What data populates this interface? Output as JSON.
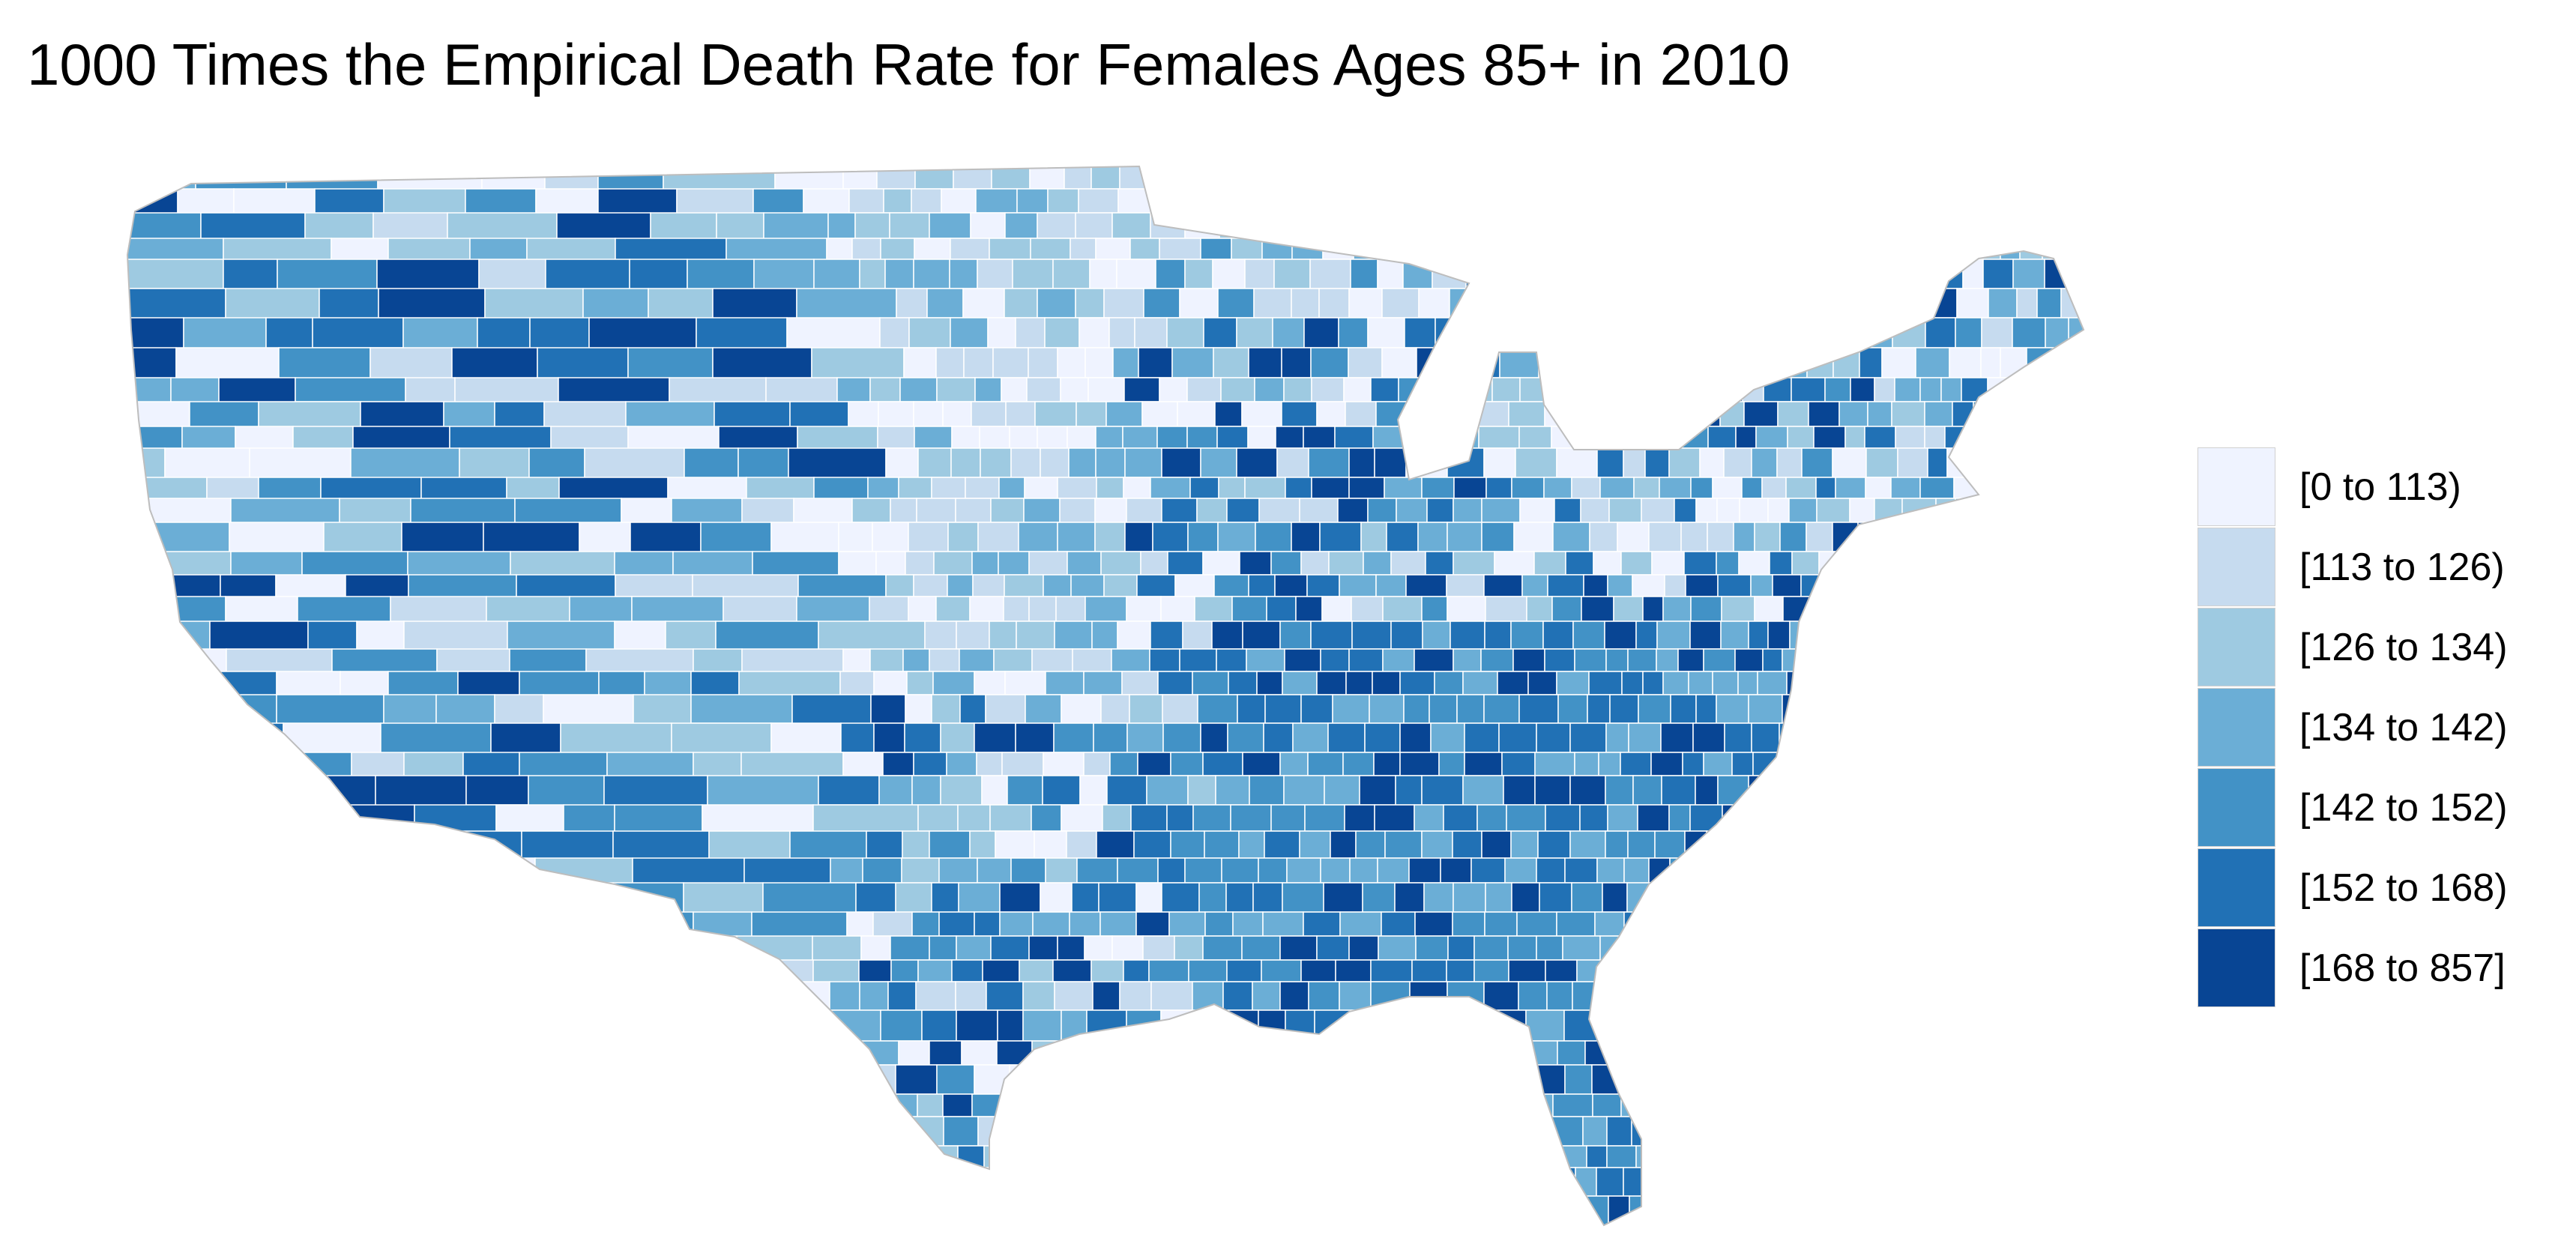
{
  "title": "1000 Times the Empirical Death Rate for Females Ages 85+ in 2010",
  "map": {
    "region": "Contiguous United States (counties)",
    "border_color": "#ffffff"
  },
  "legend": {
    "items": [
      {
        "label": "[0 to 113)",
        "color": "#eff3ff"
      },
      {
        "label": "[113 to 126)",
        "color": "#c6dbef"
      },
      {
        "label": "[126 to 134)",
        "color": "#9ecae1"
      },
      {
        "label": "[134 to 142)",
        "color": "#6baed6"
      },
      {
        "label": "[142 to 152)",
        "color": "#4292c6"
      },
      {
        "label": "[152 to 168)",
        "color": "#2171b5"
      },
      {
        "label": "[168 to 857]",
        "color": "#084594"
      }
    ]
  }
}
